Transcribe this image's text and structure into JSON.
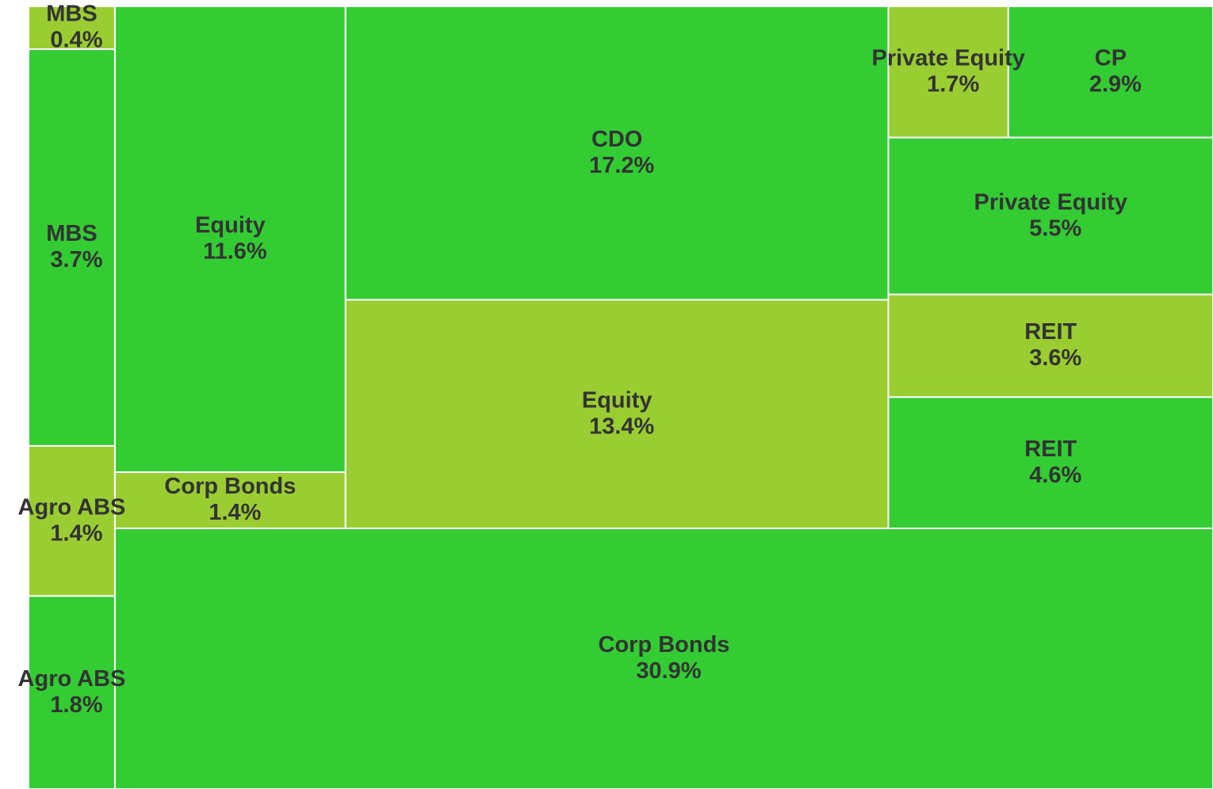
{
  "chart_data": {
    "type": "treemap",
    "categories": [
      "MBS",
      "MBS",
      "Agro ABS",
      "Agro ABS",
      "Equity",
      "Corp Bonds",
      "CDO",
      "Equity",
      "Corp Bonds",
      "Private Equity",
      "CP",
      "Private Equity",
      "REIT",
      "REIT"
    ],
    "values": [
      0.4,
      3.7,
      1.4,
      1.8,
      11.6,
      1.4,
      17.2,
      13.4,
      30.9,
      1.7,
      2.9,
      5.5,
      3.6,
      4.6
    ],
    "value_labels": [
      "0.4%",
      "3.7%",
      "1.4%",
      "1.8%",
      "11.6%",
      "1.4%",
      "17.2%",
      "13.4%",
      "30.9%",
      "1.7%",
      "2.9%",
      "5.5%",
      "3.6%",
      "4.6%"
    ],
    "colors": [
      "#9acd32",
      "#33cc33",
      "#9acd32",
      "#33cc33",
      "#33cc33",
      "#9acd32",
      "#33cc33",
      "#9acd32",
      "#33cc33",
      "#9acd32",
      "#33cc33",
      "#33cc33",
      "#9acd32",
      "#33cc33"
    ]
  }
}
